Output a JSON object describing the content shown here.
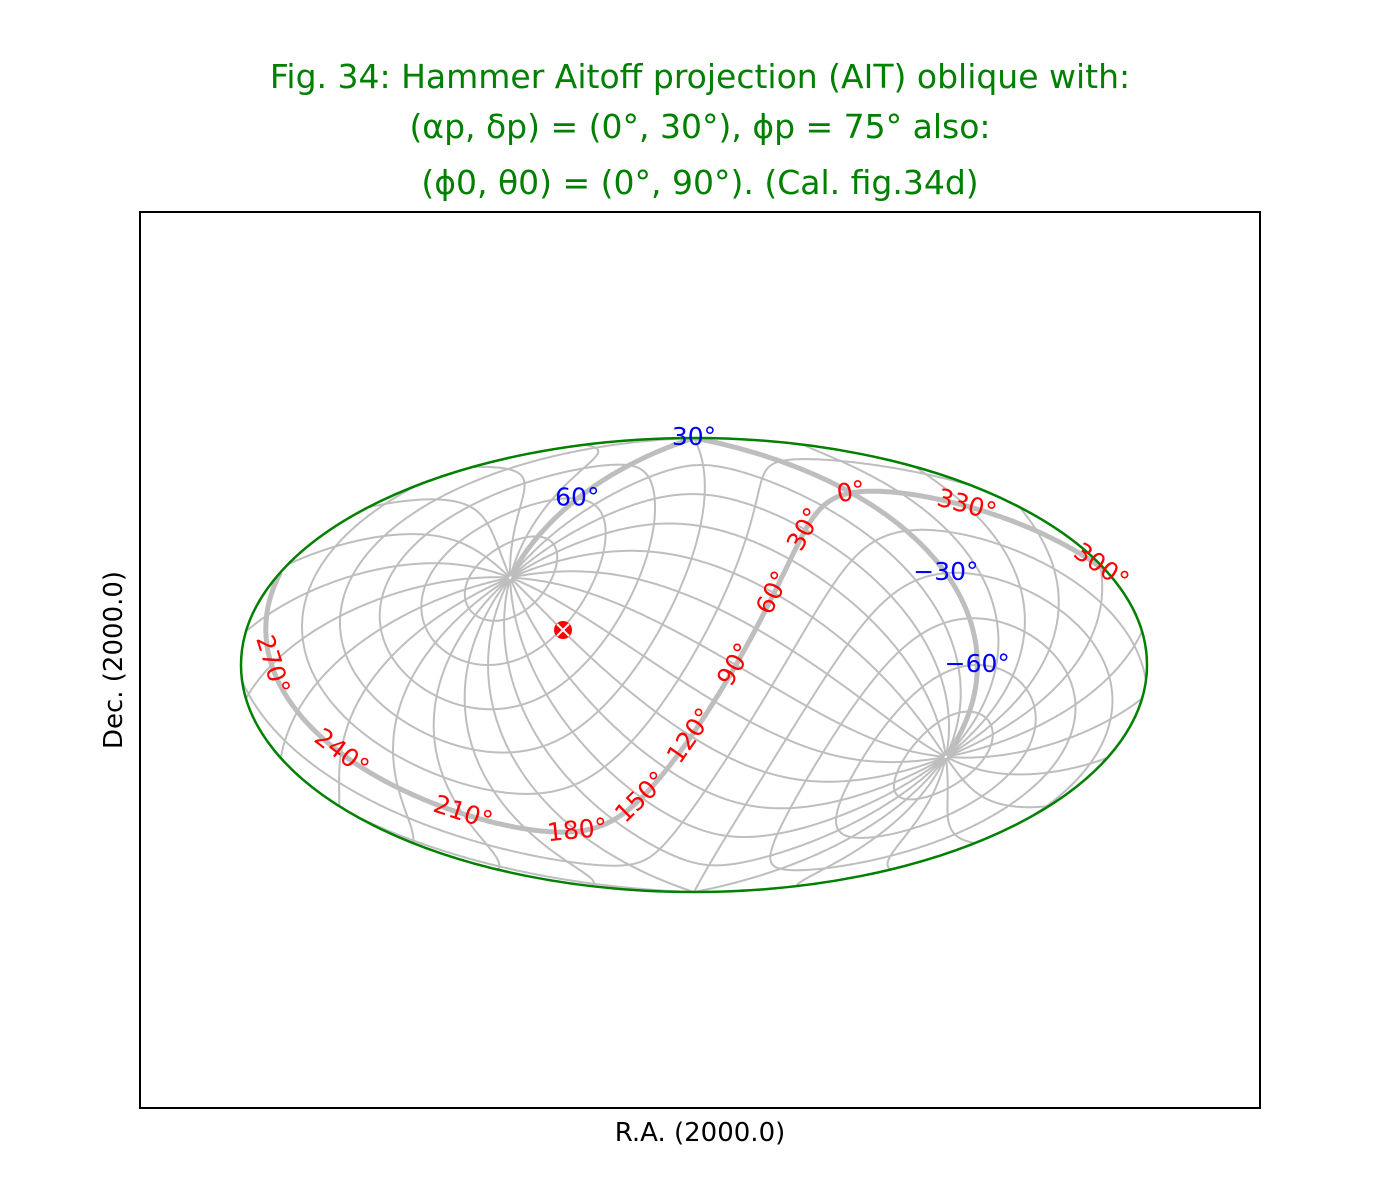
{
  "chart_data": {
    "type": "map",
    "title_lines": [
      "Fig. 34: Hammer Aitoff projection (AIT) oblique with:",
      "(αp, δp) = (0°, 30°), ϕp = 75° also:",
      "(ϕ0, θ0) = (0°, 90°). (Cal. fig.34d)"
    ],
    "xlabel": "R.A. (2000.0)",
    "ylabel": "Dec. (2000.0)",
    "projection": "AIT",
    "projection_name": "Hammer Aitoff",
    "oblique_pole": {
      "alpha_p": 0,
      "delta_p": 30,
      "phi_p": 75
    },
    "reference_point": {
      "phi_0": 0,
      "theta_0": 90
    },
    "graticule": {
      "ra_step_deg": 15,
      "dec_step_deg": 15,
      "color": "#bebebe",
      "highlighted_ra": 0,
      "highlighted_dec": 0
    },
    "border_color": "#008000",
    "ra_tick_labels": [
      "0°",
      "30°",
      "60°",
      "90°",
      "120°",
      "150°",
      "180°",
      "210°",
      "240°",
      "270°",
      "300°",
      "330°"
    ],
    "ra_label_color": "#ff0000",
    "dec_tick_labels": [
      "30°",
      "60°",
      "−30°",
      "−60°"
    ],
    "dec_label_color": "#0000ff",
    "marker": {
      "label": "celestial pole marker",
      "symbol": "circle-x",
      "color": "#ff0000"
    }
  }
}
